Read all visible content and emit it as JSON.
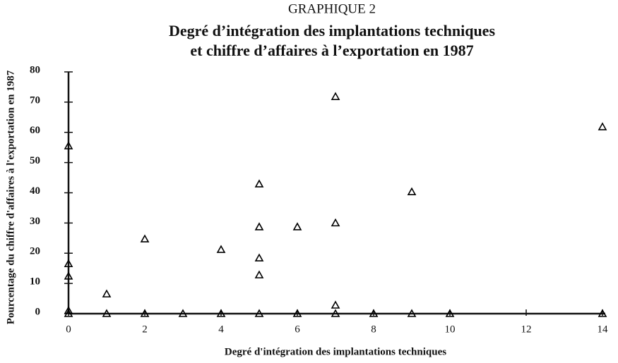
{
  "chart_data": {
    "type": "scatter",
    "supertitle": "GRAPHIQUE 2",
    "title": [
      "Degré d’intégration des implantations techniques",
      "et chiffre d’affaires à l’exportation en 1987"
    ],
    "xlabel": "Degré d'intégration des implantations techniques",
    "ylabel": "Pourcentage du chiffre d'affaires à l'exportation en 1987",
    "x": [
      0,
      0,
      0,
      0,
      0,
      1,
      1,
      2,
      2,
      3,
      4,
      4,
      5,
      5,
      5,
      5,
      5,
      6,
      6,
      7,
      7,
      7,
      7,
      8,
      9,
      9,
      10,
      14,
      14
    ],
    "values": [
      55.5,
      16.5,
      12.4,
      1,
      0,
      6.5,
      0,
      24.7,
      0,
      0,
      21.2,
      0,
      42.9,
      28.7,
      18.4,
      12.8,
      0,
      28.7,
      0,
      71.8,
      30,
      2.8,
      0,
      0,
      40.3,
      0,
      0,
      61.8,
      0
    ],
    "color": "#000000",
    "xlim": [
      0,
      14
    ],
    "xticks": [
      0,
      2,
      4,
      6,
      8,
      10,
      12,
      14
    ],
    "ylim": [
      0,
      80
    ],
    "yticks": [
      0,
      10,
      20,
      30,
      40,
      50,
      60,
      70,
      80
    ],
    "grid": false
  }
}
